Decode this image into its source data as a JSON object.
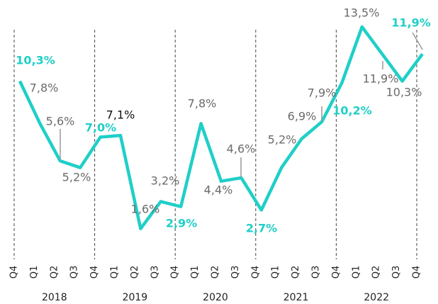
{
  "chart_data": {
    "type": "line",
    "categories": [
      "Q4",
      "Q1",
      "Q2",
      "Q3",
      "Q4",
      "Q1",
      "Q2",
      "Q3",
      "Q4",
      "Q1",
      "Q2",
      "Q3",
      "Q4",
      "Q1",
      "Q2",
      "Q3",
      "Q4",
      "Q1",
      "Q2",
      "Q3",
      "Q4"
    ],
    "groups": [
      "2018",
      "2019",
      "2020",
      "2021",
      "2022"
    ],
    "series": [
      {
        "color": "#1fcfc8",
        "values": [
          10.3,
          7.8,
          5.6,
          5.2,
          7.0,
          7.1,
          1.6,
          3.2,
          2.9,
          7.8,
          4.4,
          4.6,
          2.7,
          5.2,
          6.9,
          7.9,
          10.2,
          13.5,
          11.9,
          10.3,
          11.9
        ],
        "value_labels": [
          "10,3%",
          "7,8%",
          "5,6%",
          "5,2%",
          "7,0%",
          "7,1%",
          "1,6%",
          "3,2%",
          "2,9%",
          "7,8%",
          "4,4%",
          "4,6%",
          "2,7%",
          "5,2%",
          "6,9%",
          "7,9%",
          "10,2%",
          "13,5%",
          "11,9%",
          "10,3%",
          "11,9%"
        ]
      }
    ],
    "ylim": [
      0,
      14.5
    ]
  }
}
